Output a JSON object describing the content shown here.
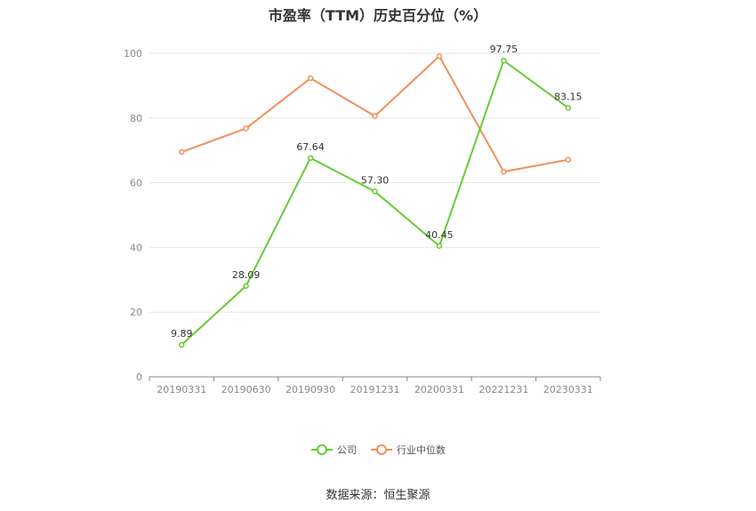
{
  "chart_data": {
    "type": "line",
    "title": "市盈率（TTM）历史百分位（%）",
    "categories": [
      "20190331",
      "20190630",
      "20190930",
      "20191231",
      "20200331",
      "20221231",
      "20230331"
    ],
    "series": [
      {
        "name": "公司",
        "color": "#66cc33",
        "values": [
          9.89,
          28.09,
          67.64,
          57.3,
          40.45,
          97.75,
          83.15
        ],
        "labels": [
          "9.89",
          "28.09",
          "67.64",
          "57.30",
          "40.45",
          "97.75",
          "83.15"
        ]
      },
      {
        "name": "行业中位数",
        "color": "#f0905a",
        "values": [
          69.5,
          76.8,
          92.3,
          80.6,
          99.1,
          63.4,
          67.1
        ]
      }
    ],
    "yticks": [
      "0",
      "20",
      "40",
      "60",
      "80",
      "100"
    ],
    "ylim": [
      0,
      100
    ],
    "grid": true,
    "legend": "bottom-center"
  },
  "source": "数据来源：恒生聚源"
}
